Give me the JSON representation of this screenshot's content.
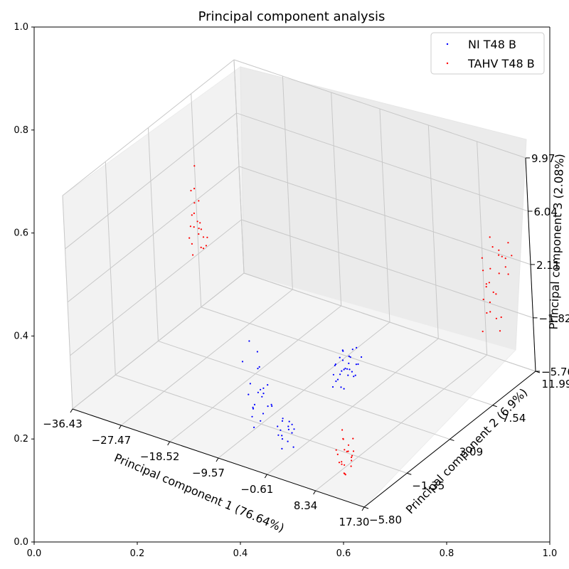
{
  "chart_data": {
    "type": "scatter",
    "projection": "3d",
    "title": "Principal component analysis",
    "xlabel": "Principal component 1 (76.64%)",
    "ylabel": "Principal component 2 (6.9%)",
    "zlabel": "Principal component 3 (2.08%)",
    "x_ticks": [
      "−36.43",
      "−27.47",
      "−18.52",
      "−9.57",
      "−0.61",
      "8.34",
      "17.30"
    ],
    "y_ticks": [
      "−5.80",
      "−1.35",
      "3.09",
      "7.54",
      "11.99"
    ],
    "z_ticks": [
      "−5.76",
      "−1.82",
      "2.11",
      "6.04",
      "9.97"
    ],
    "xlim": [
      -36.43,
      17.3
    ],
    "ylim": [
      -5.8,
      11.99
    ],
    "zlim": [
      -5.76,
      9.97
    ],
    "frame_ticks": [
      "0.0",
      "0.2",
      "0.4",
      "0.6",
      "0.8",
      "1.0"
    ],
    "grid": true,
    "legend_position": "top-right",
    "series": [
      {
        "name": "NI T48 B",
        "color": "#0000ff",
        "points": [
          [
            -8.0,
            -3.0,
            1.5
          ],
          [
            -7.5,
            -2.5,
            0.5
          ],
          [
            -8.5,
            -3.5,
            0.2
          ],
          [
            -7.0,
            -2.8,
            -0.5
          ],
          [
            -8.2,
            -2.0,
            -1.0
          ],
          [
            -7.8,
            -3.2,
            -1.5
          ],
          [
            -6.5,
            -2.6,
            -2.0
          ],
          [
            -7.2,
            -1.8,
            -2.3
          ],
          [
            -8.8,
            -2.9,
            -2.6
          ],
          [
            -6.8,
            -3.4,
            -2.8
          ],
          [
            -7.6,
            -2.2,
            -3.0
          ],
          [
            -8.4,
            -1.6,
            -3.2
          ],
          [
            -6.2,
            -2.4,
            -3.4
          ],
          [
            -7.0,
            -3.6,
            -3.6
          ],
          [
            -8.6,
            -2.6,
            -3.8
          ],
          [
            -7.4,
            -1.4,
            -4.0
          ],
          [
            -6.6,
            -3.0,
            -4.2
          ],
          [
            -7.9,
            -2.0,
            -4.4
          ],
          [
            -6.9,
            -2.7,
            -2.1
          ],
          [
            -7.7,
            -3.1,
            -3.3
          ],
          [
            -8.1,
            -2.3,
            -2.7
          ],
          [
            -6.4,
            -1.9,
            -3.7
          ],
          [
            -7.3,
            -3.3,
            -4.6
          ],
          [
            -1.0,
            -3.8,
            -3.0
          ],
          [
            -0.5,
            -3.5,
            -3.5
          ],
          [
            -1.5,
            -4.0,
            -4.0
          ],
          [
            0.0,
            -3.2,
            -3.8
          ],
          [
            -1.2,
            -4.2,
            -3.2
          ],
          [
            -0.8,
            -3.0,
            -4.3
          ],
          [
            0.3,
            -3.9,
            -3.4
          ],
          [
            -1.8,
            -3.6,
            -3.9
          ],
          [
            -0.2,
            -4.4,
            -4.6
          ],
          [
            -1.1,
            -3.3,
            -4.8
          ],
          [
            0.6,
            -3.7,
            -3.1
          ],
          [
            -0.6,
            -4.1,
            -4.1
          ],
          [
            -1.4,
            -2.9,
            -3.6
          ],
          [
            0.1,
            -3.4,
            -5.0
          ],
          [
            -0.9,
            -3.8,
            -2.8
          ],
          [
            -0.3,
            -4.3,
            -3.7
          ],
          [
            1.0,
            1.5,
            -0.5
          ],
          [
            1.5,
            1.2,
            -1.0
          ],
          [
            0.5,
            1.8,
            -0.8
          ],
          [
            2.0,
            1.0,
            -1.5
          ],
          [
            1.2,
            2.0,
            -1.2
          ],
          [
            0.8,
            1.4,
            -2.0
          ],
          [
            2.2,
            1.6,
            -0.9
          ],
          [
            1.6,
            0.8,
            -1.8
          ],
          [
            0.3,
            1.1,
            -1.4
          ],
          [
            1.8,
            1.9,
            -2.2
          ],
          [
            1.1,
            0.6,
            -1.1
          ],
          [
            2.5,
            1.3,
            -1.6
          ],
          [
            0.7,
            2.2,
            -1.9
          ],
          [
            1.4,
            1.7,
            -2.4
          ],
          [
            2.8,
            0.9,
            -1.3
          ],
          [
            1.9,
            2.4,
            -0.7
          ],
          [
            0.9,
            0.4,
            -2.6
          ],
          [
            2.3,
            2.1,
            -1.7
          ],
          [
            1.3,
            1.0,
            -2.9
          ],
          [
            0.2,
            1.6,
            -1.2
          ],
          [
            2.6,
            1.8,
            -2.3
          ],
          [
            1.7,
            0.5,
            -2.0
          ],
          [
            1.0,
            2.5,
            -1.0
          ],
          [
            3.0,
            1.4,
            -2.1
          ],
          [
            0.6,
            0.9,
            -2.5
          ],
          [
            2.0,
            2.8,
            -1.6
          ],
          [
            1.5,
            0.2,
            -1.5
          ],
          [
            2.4,
            0.7,
            -2.7
          ],
          [
            0.4,
            2.0,
            -2.2
          ],
          [
            3.2,
            1.8,
            -1.4
          ]
        ]
      },
      {
        "name": "TAHV T48 B",
        "color": "#ff0000",
        "points": [
          [
            -34.5,
            6.5,
            5.5
          ],
          [
            -33.8,
            6.0,
            4.2
          ],
          [
            -34.8,
            6.2,
            3.8
          ],
          [
            -33.5,
            5.8,
            3.3
          ],
          [
            -34.2,
            6.6,
            2.9
          ],
          [
            -33.9,
            5.7,
            2.4
          ],
          [
            -34.6,
            6.3,
            2.1
          ],
          [
            -33.2,
            6.1,
            1.7
          ],
          [
            -34.0,
            5.9,
            1.4
          ],
          [
            -33.6,
            6.4,
            1.0
          ],
          [
            -34.4,
            5.6,
            0.7
          ],
          [
            -33.1,
            6.7,
            0.3
          ],
          [
            -34.7,
            6.0,
            0.0
          ],
          [
            -33.7,
            5.5,
            -0.4
          ],
          [
            -34.1,
            6.8,
            -0.7
          ],
          [
            -33.3,
            5.9,
            1.9
          ],
          [
            -34.3,
            6.5,
            0.5
          ],
          [
            -33.4,
            6.2,
            -0.2
          ],
          [
            -32.5,
            6.0,
            0.8
          ],
          [
            -32.8,
            6.4,
            -0.1
          ],
          [
            -35.0,
            6.1,
            1.2
          ],
          [
            -32.9,
            5.8,
            1.5
          ],
          [
            10.5,
            -4.0,
            -2.0
          ],
          [
            11.0,
            -4.2,
            -2.5
          ],
          [
            10.2,
            -3.8,
            -2.8
          ],
          [
            11.5,
            -4.4,
            -3.1
          ],
          [
            10.8,
            -3.6,
            -3.3
          ],
          [
            11.2,
            -4.0,
            -3.5
          ],
          [
            10.0,
            -4.3,
            -3.7
          ],
          [
            11.8,
            -3.9,
            -3.9
          ],
          [
            10.6,
            -4.5,
            -4.1
          ],
          [
            11.4,
            -3.7,
            -4.3
          ],
          [
            10.3,
            -4.1,
            -4.5
          ],
          [
            11.6,
            -4.6,
            -4.7
          ],
          [
            10.9,
            -3.5,
            -4.9
          ],
          [
            11.1,
            -4.2,
            -5.1
          ],
          [
            10.4,
            -3.9,
            -5.3
          ],
          [
            12.0,
            -4.3,
            -3.2
          ],
          [
            10.7,
            -4.8,
            -3.0
          ],
          [
            11.3,
            -3.4,
            -3.8
          ],
          [
            10.1,
            -4.0,
            -4.4
          ],
          [
            11.9,
            -4.7,
            -4.0
          ],
          [
            11.7,
            -3.6,
            -2.7
          ],
          [
            12.3,
            -4.1,
            -3.6
          ],
          [
            12.0,
            10.0,
            3.0
          ],
          [
            13.0,
            9.5,
            2.5
          ],
          [
            12.5,
            10.5,
            2.0
          ],
          [
            13.5,
            9.8,
            1.5
          ],
          [
            12.2,
            10.2,
            1.0
          ],
          [
            13.2,
            9.3,
            0.5
          ],
          [
            12.8,
            10.8,
            0.0
          ],
          [
            13.8,
            9.6,
            -0.5
          ],
          [
            12.4,
            10.0,
            -1.0
          ],
          [
            13.4,
            10.4,
            -1.5
          ],
          [
            12.6,
            9.4,
            -2.0
          ],
          [
            13.6,
            10.6,
            -2.5
          ],
          [
            14.0,
            9.9,
            0.8
          ],
          [
            12.9,
            10.1,
            -0.2
          ],
          [
            13.1,
            9.7,
            1.2
          ],
          [
            14.5,
            10.3,
            -1.2
          ],
          [
            15.0,
            9.5,
            4.5
          ],
          [
            15.5,
            9.8,
            3.8
          ],
          [
            16.0,
            10.2,
            3.4
          ],
          [
            16.5,
            9.9,
            3.0
          ],
          [
            14.8,
            10.5,
            3.2
          ],
          [
            15.2,
            10.0,
            4.0
          ],
          [
            15.8,
            9.6,
            2.6
          ],
          [
            16.8,
            10.4,
            3.6
          ],
          [
            17.0,
            10.0,
            4.8
          ],
          [
            14.2,
            9.7,
            5.0
          ],
          [
            16.2,
            10.3,
            2.2
          ]
        ]
      }
    ]
  }
}
